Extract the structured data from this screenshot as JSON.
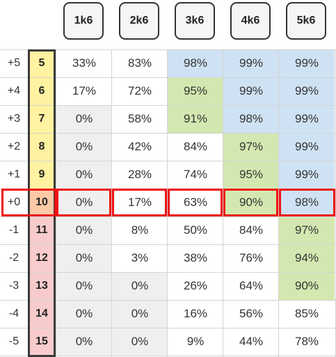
{
  "header": {
    "dice": [
      "1k6",
      "2k6",
      "3k6",
      "4k6",
      "5k6"
    ]
  },
  "rows": [
    {
      "modifier": "+5",
      "target": "5",
      "values": [
        "33%",
        "83%",
        "98%",
        "99%",
        "99%"
      ],
      "fills": [
        "#ffffff",
        "#ffffff",
        "#cfe2f3",
        "#cfe2f3",
        "#cfe2f3"
      ]
    },
    {
      "modifier": "+4",
      "target": "6",
      "values": [
        "17%",
        "72%",
        "95%",
        "99%",
        "99%"
      ],
      "fills": [
        "#ffffff",
        "#ffffff",
        "#d3e8b0",
        "#cfe2f3",
        "#cfe2f3"
      ]
    },
    {
      "modifier": "+3",
      "target": "7",
      "values": [
        "0%",
        "58%",
        "91%",
        "98%",
        "99%"
      ],
      "fills": [
        "#efefef",
        "#ffffff",
        "#d3e8b0",
        "#cfe2f3",
        "#cfe2f3"
      ]
    },
    {
      "modifier": "+2",
      "target": "8",
      "values": [
        "0%",
        "42%",
        "84%",
        "97%",
        "99%"
      ],
      "fills": [
        "#efefef",
        "#ffffff",
        "#ffffff",
        "#d3e8b0",
        "#cfe2f3"
      ]
    },
    {
      "modifier": "+1",
      "target": "9",
      "values": [
        "0%",
        "28%",
        "74%",
        "95%",
        "99%"
      ],
      "fills": [
        "#efefef",
        "#ffffff",
        "#ffffff",
        "#d3e8b0",
        "#cfe2f3"
      ]
    },
    {
      "modifier": "+0",
      "target": "10",
      "values": [
        "0%",
        "17%",
        "63%",
        "90%",
        "98%"
      ],
      "fills": [
        "#efefef",
        "#ffffff",
        "#ffffff",
        "#d3e8b0",
        "#cfe2f3"
      ]
    },
    {
      "modifier": "-1",
      "target": "11",
      "values": [
        "0%",
        "8%",
        "50%",
        "84%",
        "97%"
      ],
      "fills": [
        "#efefef",
        "#ffffff",
        "#ffffff",
        "#ffffff",
        "#d3e8b0"
      ]
    },
    {
      "modifier": "-2",
      "target": "12",
      "values": [
        "0%",
        "3%",
        "38%",
        "76%",
        "94%"
      ],
      "fills": [
        "#efefef",
        "#ffffff",
        "#ffffff",
        "#ffffff",
        "#d3e8b0"
      ]
    },
    {
      "modifier": "-3",
      "target": "13",
      "values": [
        "0%",
        "0%",
        "26%",
        "64%",
        "90%"
      ],
      "fills": [
        "#efefef",
        "#efefef",
        "#ffffff",
        "#ffffff",
        "#d3e8b0"
      ]
    },
    {
      "modifier": "-4",
      "target": "14",
      "values": [
        "0%",
        "0%",
        "16%",
        "56%",
        "85%"
      ],
      "fills": [
        "#efefef",
        "#efefef",
        "#ffffff",
        "#ffffff",
        "#ffffff"
      ]
    },
    {
      "modifier": "-5",
      "target": "15",
      "values": [
        "0%",
        "0%",
        "9%",
        "44%",
        "78%"
      ],
      "fills": [
        "#efefef",
        "#efefef",
        "#ffffff",
        "#ffffff",
        "#ffffff"
      ]
    }
  ],
  "target_fills": [
    "#fff2a0",
    "#fff2a0",
    "#fff2a0",
    "#fff2a0",
    "#fff2a0",
    "#fcc9a6",
    "#f8cccc",
    "#f8cccc",
    "#f8cccc",
    "#f8cccc",
    "#f8cccc"
  ],
  "highlighted_row": "+0",
  "colors": {
    "blue": "#cfe2f3",
    "green": "#d3e8b0",
    "grey": "#efefef",
    "yellow": "#fff2a0",
    "orange": "#fcc9a6",
    "pink": "#f8cccc",
    "highlight_border": "#ee1111"
  }
}
